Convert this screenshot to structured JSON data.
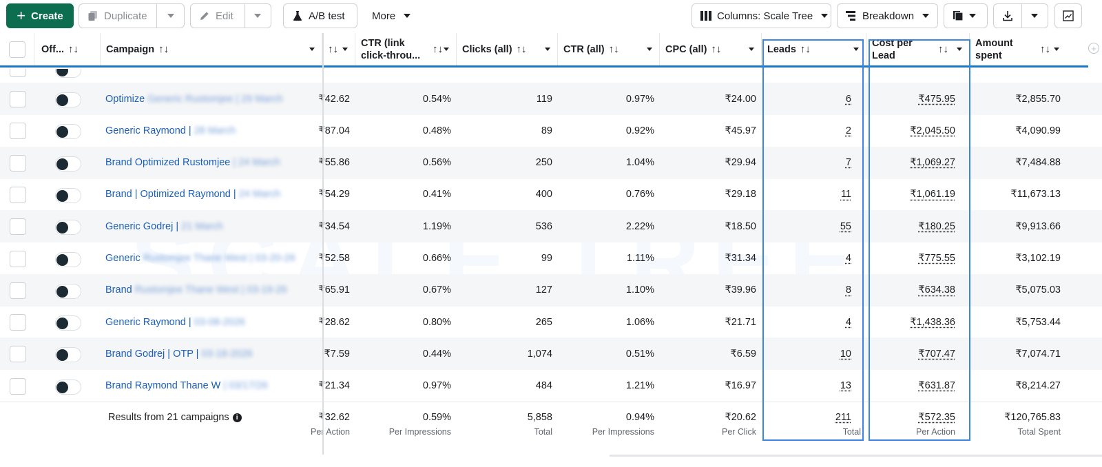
{
  "toolbar": {
    "create_label": "Create",
    "duplicate_label": "Duplicate",
    "edit_label": "Edit",
    "ab_test_label": "A/B test",
    "more_label": "More",
    "columns_label": "Columns: Scale Tree",
    "breakdown_label": "Breakdown"
  },
  "headers": {
    "off": "Off...",
    "campaign": "Campaign",
    "sort_glyph": "↑↓",
    "ctr_link_1": "CTR (link",
    "ctr_link_2": "click-throu...",
    "clicks": "Clicks (all)",
    "ctr_all": "CTR (all)",
    "cpc_all": "CPC (all)",
    "leads": "Leads",
    "cpl_1": "Cost per",
    "cpl_2": "Lead",
    "amount_1": "Amount",
    "amount_2": "spent"
  },
  "rows": [
    {
      "campaign": "Optimize Generic Rustomjee | 29 March",
      "clear": "Optimize",
      "hidden": "Generic Rustomjee | 29 March",
      "cpm": "₹42.62",
      "ctr_link": "0.54%",
      "clicks": "119",
      "ctr_all": "0.97%",
      "cpc": "₹24.00",
      "leads": "6",
      "cpl": "₹475.95",
      "spent": "₹2,855.70"
    },
    {
      "campaign": "Generic Raymond | 28 March",
      "clear": "Generic Raymond |",
      "hidden": "28 March",
      "cpm": "₹87.04",
      "ctr_link": "0.48%",
      "clicks": "89",
      "ctr_all": "0.92%",
      "cpc": "₹45.97",
      "leads": "2",
      "cpl": "₹2,045.50",
      "spent": "₹4,090.99"
    },
    {
      "campaign": "Brand Optimized Rustomjee | 24 March",
      "clear": "Brand Optimized Rustomjee",
      "hidden": "| 24 March",
      "cpm": "₹55.86",
      "ctr_link": "0.56%",
      "clicks": "250",
      "ctr_all": "1.04%",
      "cpc": "₹29.94",
      "leads": "7",
      "cpl": "₹1,069.27",
      "spent": "₹7,484.88"
    },
    {
      "campaign": "Brand | Optimized Raymond | 24 March",
      "clear": "Brand | Optimized Raymond |",
      "hidden": "24 March",
      "cpm": "₹54.29",
      "ctr_link": "0.41%",
      "clicks": "400",
      "ctr_all": "0.76%",
      "cpc": "₹29.18",
      "leads": "11",
      "cpl": "₹1,061.19",
      "spent": "₹11,673.13"
    },
    {
      "campaign": "Generic Godrej | 21 March",
      "clear": "Generic Godrej |",
      "hidden": "21 March",
      "cpm": "₹34.54",
      "ctr_link": "1.19%",
      "clicks": "536",
      "ctr_all": "2.22%",
      "cpc": "₹18.50",
      "leads": "55",
      "cpl": "₹180.25",
      "spent": "₹9,913.66"
    },
    {
      "campaign": "Generic Rustomjee Thane West | 03-20-26",
      "clear": "Generic",
      "hidden": "Rustomjee Thane West | 03-20-26",
      "cpm": "₹52.58",
      "ctr_link": "0.66%",
      "clicks": "99",
      "ctr_all": "1.11%",
      "cpc": "₹31.34",
      "leads": "4",
      "cpl": "₹775.55",
      "spent": "₹3,102.19"
    },
    {
      "campaign": "Brand Rustomjee Thane West | 03-19-26",
      "clear": "Brand",
      "hidden": "Rustomjee Thane West | 03-19-26",
      "cpm": "₹65.91",
      "ctr_link": "0.67%",
      "clicks": "127",
      "ctr_all": "1.10%",
      "cpc": "₹39.96",
      "leads": "8",
      "cpl": "₹634.38",
      "spent": "₹5,075.03"
    },
    {
      "campaign": "Generic Raymond | 03-08-2026",
      "clear": "Generic Raymond |",
      "hidden": "03-08-2026",
      "cpm": "₹28.62",
      "ctr_link": "0.80%",
      "clicks": "265",
      "ctr_all": "1.06%",
      "cpc": "₹21.71",
      "leads": "4",
      "cpl": "₹1,438.36",
      "spent": "₹5,753.44"
    },
    {
      "campaign": "Brand Godrej | OTP | 03-18-2026",
      "clear": "Brand Godrej | OTP |",
      "hidden": "03-18-2026",
      "cpm": "₹7.59",
      "ctr_link": "0.44%",
      "clicks": "1,074",
      "ctr_all": "0.51%",
      "cpc": "₹6.59",
      "leads": "10",
      "cpl": "₹707.47",
      "spent": "₹7,074.71"
    },
    {
      "campaign": "Brand Raymond Thane W | 03/17/26",
      "clear": "Brand Raymond Thane W",
      "hidden": "| 03/17/26",
      "cpm": "₹21.34",
      "ctr_link": "0.97%",
      "clicks": "484",
      "ctr_all": "1.21%",
      "cpc": "₹16.97",
      "leads": "13",
      "cpl": "₹631.87",
      "spent": "₹8,214.27"
    }
  ],
  "totals": {
    "label": "Results from 21 campaigns",
    "cpm": "₹32.62",
    "cpm_sub": "Per Action",
    "ctr_link": "0.59%",
    "ctr_link_sub": "Per Impressions",
    "clicks": "5,858",
    "clicks_sub": "Total",
    "ctr_all": "0.94%",
    "ctr_all_sub": "Per Impressions",
    "cpc": "₹20.62",
    "cpc_sub": "Per Click",
    "leads": "211",
    "leads_sub": "Total",
    "cpl": "₹572.35",
    "cpl_sub": "Per Action",
    "spent": "₹120,765.83",
    "spent_sub": "Total Spent"
  },
  "watermark": "SCALE TREE",
  "colors": {
    "accent": "#1877c9",
    "create": "#0c6e4f",
    "link": "#1b5fb8",
    "highlight": "#3a85e6"
  }
}
